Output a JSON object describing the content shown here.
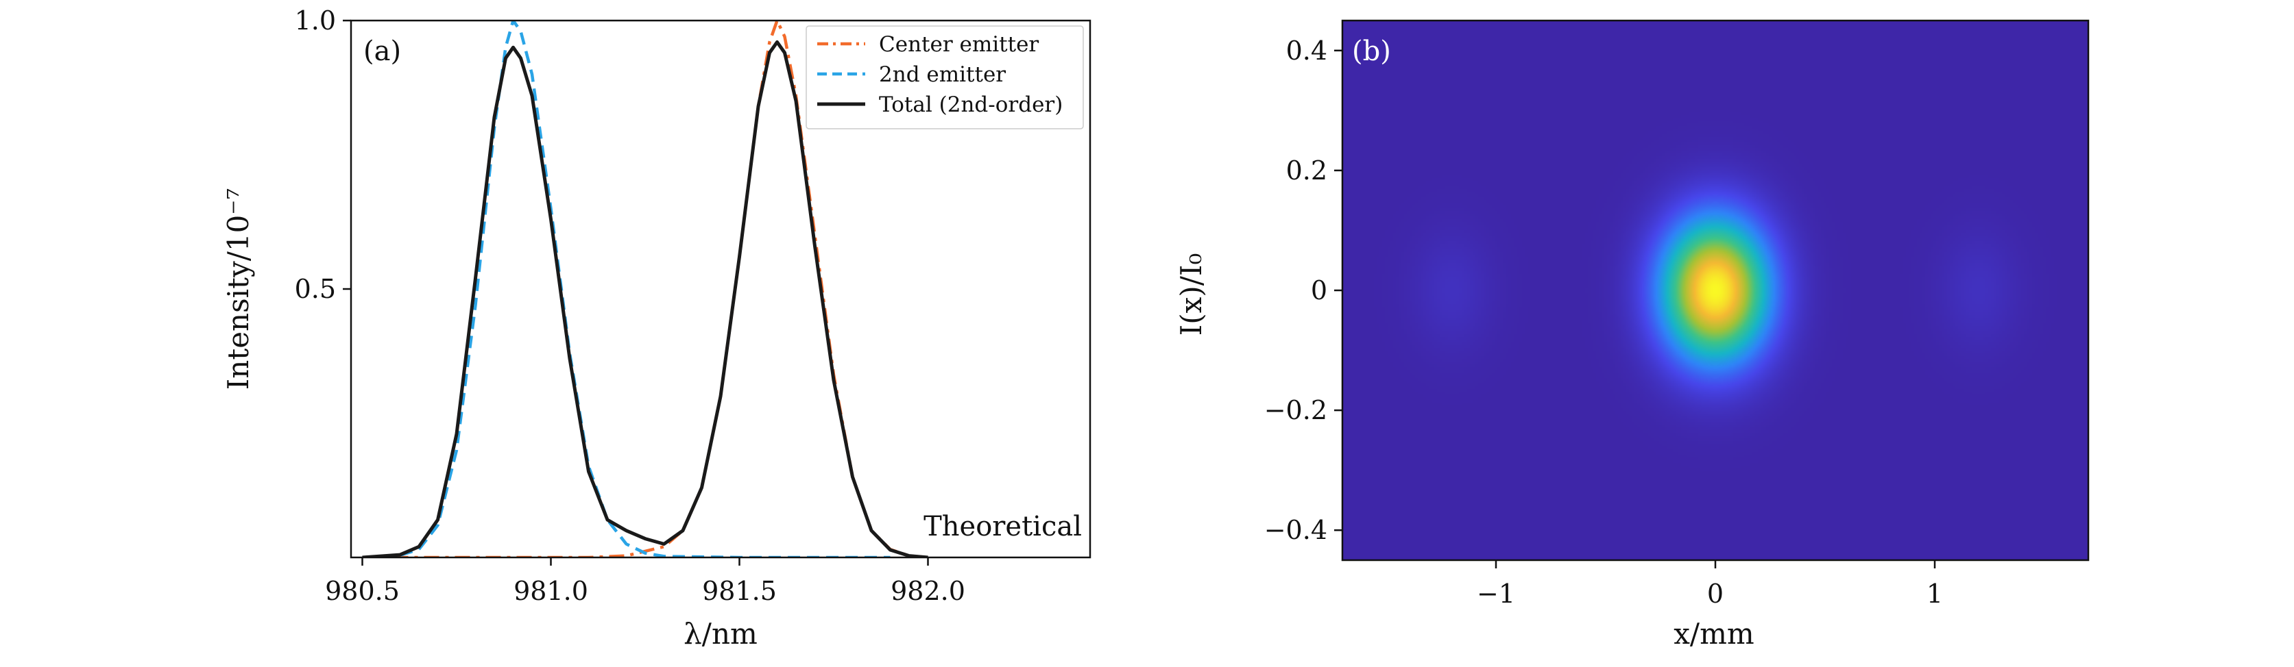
{
  "chart_data": [
    {
      "type": "line",
      "panel_label": "(a)",
      "title": "",
      "xlabel": "λ/nm",
      "ylabel": "Intensity/10⁻⁷",
      "xlim": [
        980.47,
        982.43
      ],
      "ylim": [
        0,
        1.0
      ],
      "xticks": [
        {
          "value": 980.5,
          "label": "980.5"
        },
        {
          "value": 981.0,
          "label": "981.0"
        },
        {
          "value": 981.5,
          "label": "981.5"
        },
        {
          "value": 982.0,
          "label": "982.0"
        }
      ],
      "yticks": [
        {
          "value": 0.5,
          "label": "0.5"
        },
        {
          "value": 1.0,
          "label": "1.0"
        }
      ],
      "grid": false,
      "legend_position": "top-right",
      "annotation": "Theoretical",
      "series": [
        {
          "name": "Center emitter",
          "style": "dash-dot",
          "color": "#f26b2b",
          "x": [
            980.5,
            980.9,
            981.1,
            981.2,
            981.3,
            981.35,
            981.4,
            981.45,
            981.5,
            981.55,
            981.58,
            981.6,
            981.62,
            981.65,
            981.7,
            981.75,
            981.8,
            981.85,
            981.9,
            981.95,
            982.0
          ],
          "y": [
            0.0,
            0.0,
            0.0,
            0.003,
            0.02,
            0.05,
            0.13,
            0.3,
            0.56,
            0.84,
            0.96,
            1.0,
            0.97,
            0.86,
            0.6,
            0.34,
            0.15,
            0.05,
            0.015,
            0.003,
            0.0
          ]
        },
        {
          "name": "2nd emitter",
          "style": "dashed",
          "color": "#2aa4e6",
          "x": [
            980.5,
            980.6,
            980.65,
            980.7,
            980.75,
            980.8,
            980.85,
            980.88,
            980.9,
            980.92,
            980.95,
            981.0,
            981.05,
            981.1,
            981.15,
            981.2,
            981.25,
            981.3,
            981.5,
            981.7,
            981.9
          ],
          "y": [
            0.0,
            0.004,
            0.015,
            0.06,
            0.2,
            0.47,
            0.8,
            0.95,
            1.0,
            0.98,
            0.9,
            0.65,
            0.38,
            0.17,
            0.07,
            0.025,
            0.008,
            0.002,
            0.0,
            0.0,
            0.0
          ]
        },
        {
          "name": "Total (2nd-order)",
          "style": "solid",
          "color": "#1a1a1a",
          "x": [
            980.5,
            980.6,
            980.65,
            980.7,
            980.75,
            980.8,
            980.85,
            980.88,
            980.9,
            980.92,
            980.95,
            981.0,
            981.05,
            981.1,
            981.15,
            981.2,
            981.25,
            981.3,
            981.35,
            981.4,
            981.45,
            981.5,
            981.55,
            981.58,
            981.6,
            981.62,
            981.65,
            981.7,
            981.75,
            981.8,
            981.85,
            981.9,
            981.95,
            982.0
          ],
          "y": [
            0.0,
            0.005,
            0.02,
            0.07,
            0.23,
            0.52,
            0.82,
            0.93,
            0.95,
            0.93,
            0.86,
            0.63,
            0.37,
            0.16,
            0.07,
            0.05,
            0.035,
            0.025,
            0.05,
            0.13,
            0.3,
            0.56,
            0.84,
            0.94,
            0.96,
            0.94,
            0.85,
            0.58,
            0.33,
            0.15,
            0.05,
            0.014,
            0.003,
            0.0
          ]
        }
      ]
    },
    {
      "type": "heatmap",
      "panel_label": "(b)",
      "title": "",
      "xlabel": "x/mm",
      "ylabel": "I(x)/I₀",
      "xlim": [
        -1.7,
        1.7
      ],
      "ylim": [
        -0.45,
        0.45
      ],
      "xticks": [
        {
          "value": -1,
          "label": "−1"
        },
        {
          "value": 0,
          "label": "0"
        },
        {
          "value": 1,
          "label": "1"
        }
      ],
      "yticks": [
        {
          "value": -0.4,
          "label": "−0.4"
        },
        {
          "value": -0.2,
          "label": "−0.2"
        },
        {
          "value": 0,
          "label": "0"
        },
        {
          "value": 0.2,
          "label": "0.2"
        },
        {
          "value": 0.4,
          "label": "0.4"
        }
      ],
      "colormap": [
        "#3e26a8",
        "#4746eb",
        "#2f84f8",
        "#16b5c8",
        "#3dc388",
        "#a6c234",
        "#f5b933",
        "#f9f924"
      ],
      "background_color": "#3e26a8",
      "spots": [
        {
          "x": 0.0,
          "y": 0.0,
          "sigma_x": 0.17,
          "sigma_y": 0.082,
          "peak": 1.0
        },
        {
          "x": -1.2,
          "y": 0.0,
          "sigma_x": 0.13,
          "sigma_y": 0.07,
          "peak": 0.05
        },
        {
          "x": 1.2,
          "y": 0.0,
          "sigma_x": 0.13,
          "sigma_y": 0.07,
          "peak": 0.05
        }
      ]
    }
  ]
}
